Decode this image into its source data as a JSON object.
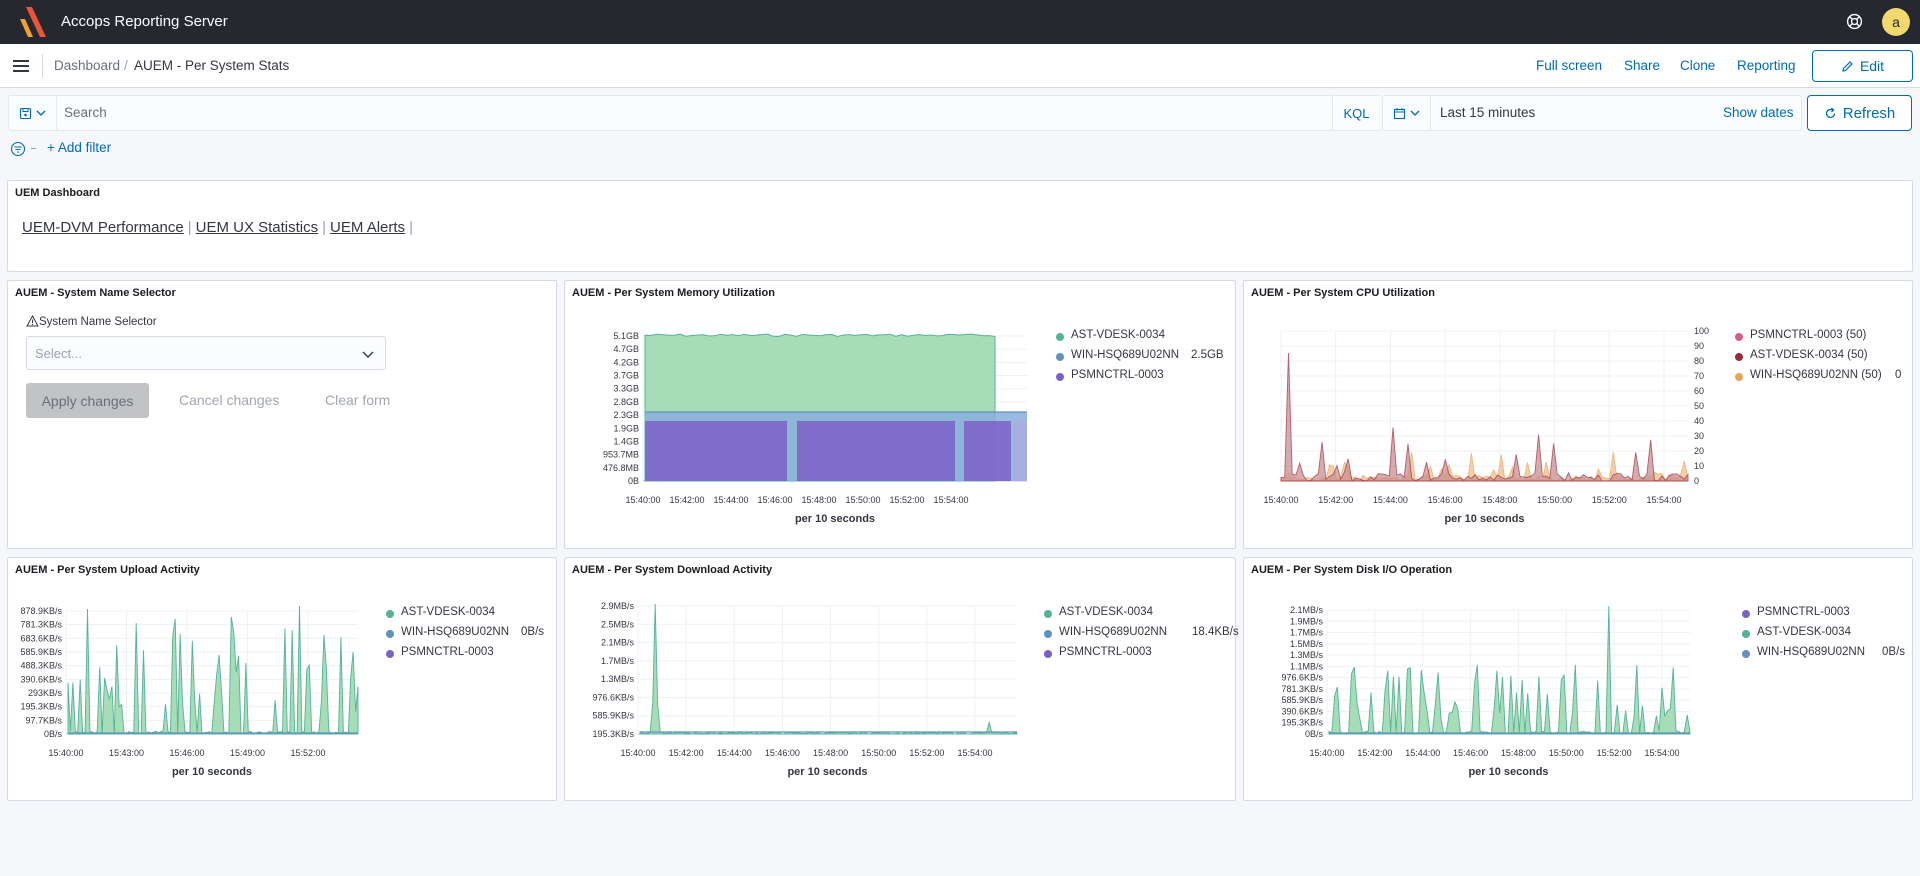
{
  "app": {
    "title": "Accops Reporting Server",
    "avatar_letter": "a"
  },
  "breadcrumb": {
    "parent": "Dashboard",
    "sep": "/",
    "current": "AUEM - Per System Stats"
  },
  "header_links": {
    "fullscreen": "Full screen",
    "share": "Share",
    "clone": "Clone",
    "reporting": "Reporting",
    "edit": "Edit"
  },
  "query": {
    "search_placeholder": "Search",
    "language": "KQL",
    "time_range": "Last 15 minutes",
    "show_dates": "Show dates",
    "refresh": "Refresh",
    "add_filter": "+ Add filter"
  },
  "uem_panel": {
    "title": "UEM Dashboard",
    "links": [
      "UEM-DVM Performance",
      "UEM UX Statistics",
      "UEM Alerts"
    ]
  },
  "selector_panel": {
    "title": "AUEM - System Name Selector",
    "label": "System Name Selector",
    "placeholder": "Select...",
    "apply": "Apply changes",
    "cancel": "Cancel changes",
    "clear": "Clear form"
  },
  "colors": {
    "green": "#54b399",
    "greenFill": "#a6dcb6",
    "blue": "#6092c0",
    "purple": "#7b61c7",
    "pink": "#ca8eae",
    "magenta": "#d36086",
    "darkred": "#9b2a3a",
    "orange": "#e7a35c"
  },
  "chart_data": [
    {
      "type": "area",
      "title": "AUEM - Per System Memory Utilization",
      "xlabel": "per 10 seconds",
      "x_ticks": [
        "15:40:00",
        "15:42:00",
        "15:44:00",
        "15:46:00",
        "15:48:00",
        "15:50:00",
        "15:52:00",
        "15:54:00"
      ],
      "y_ticks": [
        "0B",
        "476.8MB",
        "953.7MB",
        "1.4GB",
        "1.9GB",
        "2.3GB",
        "2.8GB",
        "3.3GB",
        "3.7GB",
        "4.2GB",
        "4.7GB",
        "5.1GB"
      ],
      "series": [
        {
          "name": "AST-VDESK-0034",
          "value_label": ""
        },
        {
          "name": "WIN-HSQ689U02NN",
          "value_label": "2.5GB"
        },
        {
          "name": "PSMNCTRL-0003",
          "value_label": ""
        }
      ]
    },
    {
      "type": "area",
      "title": "AUEM - Per System CPU Utilization",
      "xlabel": "per 10 seconds",
      "x_ticks": [
        "15:40:00",
        "15:42:00",
        "15:44:00",
        "15:46:00",
        "15:48:00",
        "15:50:00",
        "15:52:00",
        "15:54:00"
      ],
      "y_ticks": [
        "0",
        "10",
        "20",
        "30",
        "40",
        "50",
        "60",
        "70",
        "80",
        "90",
        "100"
      ],
      "series": [
        {
          "name": "PSMNCTRL-0003 (50)",
          "value_label": ""
        },
        {
          "name": "AST-VDESK-0034 (50)",
          "value_label": ""
        },
        {
          "name": "WIN-HSQ689U02NN (50)",
          "value_label": "0"
        }
      ]
    },
    {
      "type": "area",
      "title": "AUEM - Per System Upload Activity",
      "xlabel": "per 10 seconds",
      "x_ticks": [
        "15:40:00",
        "15:43:00",
        "15:46:00",
        "15:49:00",
        "15:52:00"
      ],
      "y_ticks": [
        "0B/s",
        "97.7KB/s",
        "195.3KB/s",
        "293KB/s",
        "390.6KB/s",
        "488.3KB/s",
        "585.9KB/s",
        "683.6KB/s",
        "781.3KB/s",
        "878.9KB/s"
      ],
      "series": [
        {
          "name": "AST-VDESK-0034",
          "value_label": ""
        },
        {
          "name": "WIN-HSQ689U02NN",
          "value_label": "0B/s"
        },
        {
          "name": "PSMNCTRL-0003",
          "value_label": ""
        }
      ]
    },
    {
      "type": "area",
      "title": "AUEM - Per System Download Activity",
      "xlabel": "per 10 seconds",
      "x_ticks": [
        "15:40:00",
        "15:42:00",
        "15:44:00",
        "15:46:00",
        "15:48:00",
        "15:50:00",
        "15:52:00",
        "15:54:00"
      ],
      "y_ticks": [
        "195.3KB/s",
        "585.9KB/s",
        "976.6KB/s",
        "1.3MB/s",
        "1.7MB/s",
        "2.1MB/s",
        "2.5MB/s",
        "2.9MB/s"
      ],
      "series": [
        {
          "name": "AST-VDESK-0034",
          "value_label": ""
        },
        {
          "name": "WIN-HSQ689U02NN",
          "value_label": "18.4KB/s"
        },
        {
          "name": "PSMNCTRL-0003",
          "value_label": ""
        }
      ]
    },
    {
      "type": "area",
      "title": "AUEM - Per System Disk I/O Operation",
      "xlabel": "per 10 seconds",
      "x_ticks": [
        "15:40:00",
        "15:42:00",
        "15:44:00",
        "15:46:00",
        "15:48:00",
        "15:50:00",
        "15:52:00",
        "15:54:00"
      ],
      "y_ticks": [
        "0B/s",
        "195.3KB/s",
        "390.6KB/s",
        "585.9KB/s",
        "781.3KB/s",
        "976.6KB/s",
        "1.1MB/s",
        "1.3MB/s",
        "1.5MB/s",
        "1.7MB/s",
        "1.9MB/s",
        "2.1MB/s"
      ],
      "series": [
        {
          "name": "PSMNCTRL-0003",
          "value_label": ""
        },
        {
          "name": "AST-VDESK-0034",
          "value_label": ""
        },
        {
          "name": "WIN-HSQ689U02NN",
          "value_label": "0B/s"
        }
      ]
    }
  ]
}
